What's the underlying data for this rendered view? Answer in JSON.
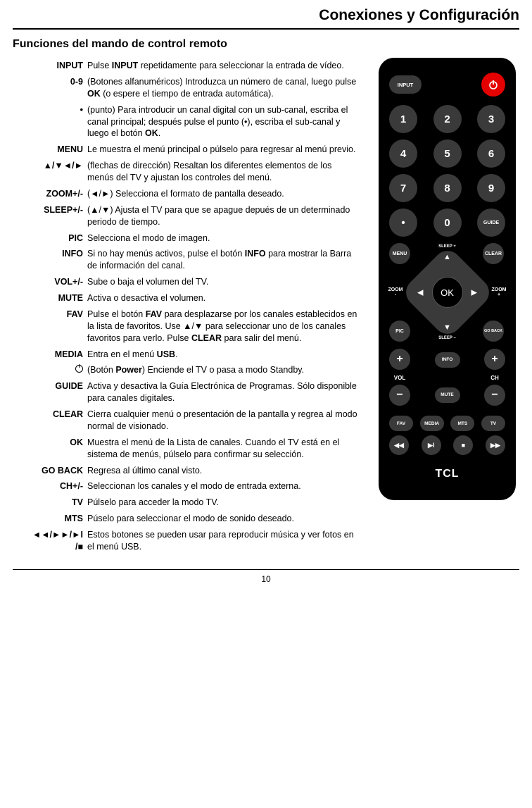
{
  "header": {
    "section_title": "Conexiones y Configuración"
  },
  "page": {
    "heading": "Funciones del mando de control remoto",
    "number": "10"
  },
  "functions": [
    {
      "label": "INPUT",
      "desc": "Pulse <b>INPUT</b> repetidamente para seleccionar la entrada de vídeo."
    },
    {
      "label": "0-9",
      "desc": "(Botones alfanuméricos) Introduzca un número de canal, luego pulse <b>OK</b> (o espere el tiempo de entrada automática)."
    },
    {
      "label": "•",
      "desc": "(punto) Para introducir un canal digital con un sub-canal, escriba el canal principal; después pulse el punto (•), escriba el sub-canal y luego el botón <b>OK</b>."
    },
    {
      "label": "MENU",
      "desc": "Le muestra el menú principal o púlselo para regresar al menú previo."
    },
    {
      "label": "▲/▼◄/►",
      "desc": "(flechas de dirección) Resaltan los diferentes elementos de los menús del TV y ajustan los controles del menú."
    },
    {
      "label": "ZOOM+/-",
      "desc": "(◄/►) Selecciona el formato de pantalla deseado."
    },
    {
      "label": "SLEEP+/-",
      "desc": "(▲/▼) Ajusta el TV para que se apague depués de un determinado periodo de tiempo."
    },
    {
      "label": "PIC",
      "desc": "Selecciona el modo de imagen."
    },
    {
      "label": "INFO",
      "desc": "Si no hay menús activos, pulse el botón <b>INFO</b> para mostrar la Barra de información del canal."
    },
    {
      "label": "VOL+/-",
      "desc": "Sube o baja el volumen del TV."
    },
    {
      "label": "MUTE",
      "desc": "Activa o desactiva el volumen."
    },
    {
      "label": "FAV",
      "desc": "Pulse el botón <b>FAV</b> para desplazarse por los canales establecidos en la lista de favoritos. Use ▲/▼ para seleccionar uno de los canales favoritos para verlo. Pulse <b>CLEAR</b> para salir del menú."
    },
    {
      "label": "MEDIA",
      "desc": "Entra en el menú <b>USB</b>."
    },
    {
      "label": "POWERICON",
      "desc": "(Botón <b>Power</b>) Enciende el TV o pasa a modo Standby."
    },
    {
      "label": "GUIDE",
      "desc": "Activa y desactiva la Guía Electrónica de Programas. Sólo disponible para canales digitales."
    },
    {
      "label": "CLEAR",
      "desc": "Cierra cualquier menú o presentación de la pantalla y regrea al modo normal de visionado."
    },
    {
      "label": "OK",
      "desc": "Muestra el menú de la Lista de canales. Cuando el TV está en el sistema de menús, púlselo para confirmar su selección."
    },
    {
      "label": "GO BACK",
      "desc": "Regresa al último canal visto."
    },
    {
      "label": "CH+/-",
      "desc": "Seleccionan los canales y el modo de entrada externa."
    },
    {
      "label": "TV",
      "desc": "Púlselo para acceder la modo TV."
    },
    {
      "label": "MTS",
      "desc": "Púselo para seleccionar el modo de sonido deseado."
    },
    {
      "label": "◄◄/►►/►I\n/■",
      "desc": "Estos botones se pueden usar para reproducir música y ver fotos en el menú USB."
    }
  ],
  "remote": {
    "input": "INPUT",
    "guide": "GUIDE",
    "menu": "MENU",
    "clear": "CLEAR",
    "zoom_minus": "ZOOM\n-",
    "zoom_plus": "ZOOM\n+",
    "sleep_plus": "SLEEP +",
    "sleep_minus": "SLEEP –",
    "ok": "OK",
    "pic": "PIC",
    "goback": "GO BACK",
    "info": "INFO",
    "mute": "MUTE",
    "vol": "VOL",
    "ch": "CH",
    "fav": "FAV",
    "media": "MEDIA",
    "mts": "MTS",
    "tv": "TV",
    "brand": "TCL",
    "numbers": [
      "1",
      "2",
      "3",
      "4",
      "5",
      "6",
      "7",
      "8",
      "9",
      "•",
      "0"
    ],
    "colors": {
      "body": "#000000",
      "button": "#3a3a3a",
      "power": "#e40000",
      "text": "#ffffff"
    }
  }
}
